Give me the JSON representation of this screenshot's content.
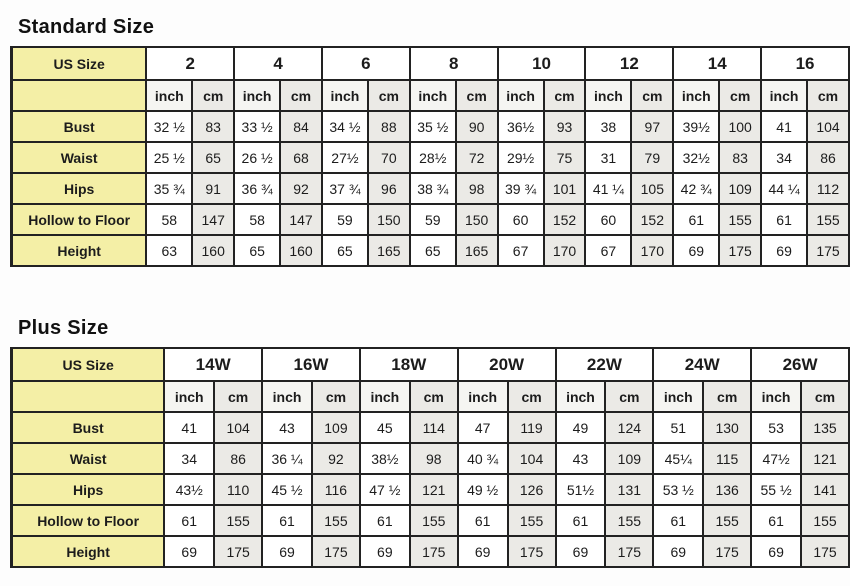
{
  "colors": {
    "label_yellow": "#f4efa6",
    "cm_column_gray": "#ebeae6",
    "inch_unit_bg": "#f5f5f2",
    "border_dark": "#222222",
    "page_bg": "#fdfdfd"
  },
  "standard": {
    "title": "Standard Size",
    "corner_label": "US Size",
    "unit_inch": "inch",
    "unit_cm": "cm",
    "sizes": [
      "2",
      "4",
      "6",
      "8",
      "10",
      "12",
      "14",
      "16"
    ],
    "rows": [
      {
        "label": "Bust",
        "values": [
          [
            "32 ½",
            "83"
          ],
          [
            "33 ½",
            "84"
          ],
          [
            "34 ½",
            "88"
          ],
          [
            "35 ½",
            "90"
          ],
          [
            "36½",
            "93"
          ],
          [
            "38",
            "97"
          ],
          [
            "39½",
            "100"
          ],
          [
            "41",
            "104"
          ]
        ]
      },
      {
        "label": "Waist",
        "values": [
          [
            "25 ½",
            "65"
          ],
          [
            "26 ½",
            "68"
          ],
          [
            "27½",
            "70"
          ],
          [
            "28½",
            "72"
          ],
          [
            "29½",
            "75"
          ],
          [
            "31",
            "79"
          ],
          [
            "32½",
            "83"
          ],
          [
            "34",
            "86"
          ]
        ]
      },
      {
        "label": "Hips",
        "values": [
          [
            "35 ¾",
            "91"
          ],
          [
            "36 ¾",
            "92"
          ],
          [
            "37 ¾",
            "96"
          ],
          [
            "38 ¾",
            "98"
          ],
          [
            "39 ¾",
            "101"
          ],
          [
            "41 ¼",
            "105"
          ],
          [
            "42 ¾",
            "109"
          ],
          [
            "44 ¼",
            "112"
          ]
        ]
      },
      {
        "label": "Hollow to Floor",
        "values": [
          [
            "58",
            "147"
          ],
          [
            "58",
            "147"
          ],
          [
            "59",
            "150"
          ],
          [
            "59",
            "150"
          ],
          [
            "60",
            "152"
          ],
          [
            "60",
            "152"
          ],
          [
            "61",
            "155"
          ],
          [
            "61",
            "155"
          ]
        ]
      },
      {
        "label": "Height",
        "values": [
          [
            "63",
            "160"
          ],
          [
            "65",
            "160"
          ],
          [
            "65",
            "165"
          ],
          [
            "65",
            "165"
          ],
          [
            "67",
            "170"
          ],
          [
            "67",
            "170"
          ],
          [
            "69",
            "175"
          ],
          [
            "69",
            "175"
          ]
        ]
      }
    ]
  },
  "plus": {
    "title": "Plus Size",
    "corner_label": "US Size",
    "unit_inch": "inch",
    "unit_cm": "cm",
    "sizes": [
      "14W",
      "16W",
      "18W",
      "20W",
      "22W",
      "24W",
      "26W"
    ],
    "rows": [
      {
        "label": "Bust",
        "values": [
          [
            "41",
            "104"
          ],
          [
            "43",
            "109"
          ],
          [
            "45",
            "114"
          ],
          [
            "47",
            "119"
          ],
          [
            "49",
            "124"
          ],
          [
            "51",
            "130"
          ],
          [
            "53",
            "135"
          ]
        ]
      },
      {
        "label": "Waist",
        "values": [
          [
            "34",
            "86"
          ],
          [
            "36 ¼",
            "92"
          ],
          [
            "38½",
            "98"
          ],
          [
            "40 ¾",
            "104"
          ],
          [
            "43",
            "109"
          ],
          [
            "45¼",
            "115"
          ],
          [
            "47½",
            "121"
          ]
        ]
      },
      {
        "label": "Hips",
        "values": [
          [
            "43½",
            "110"
          ],
          [
            "45 ½",
            "116"
          ],
          [
            "47 ½",
            "121"
          ],
          [
            "49 ½",
            "126"
          ],
          [
            "51½",
            "131"
          ],
          [
            "53 ½",
            "136"
          ],
          [
            "55 ½",
            "141"
          ]
        ]
      },
      {
        "label": "Hollow to Floor",
        "values": [
          [
            "61",
            "155"
          ],
          [
            "61",
            "155"
          ],
          [
            "61",
            "155"
          ],
          [
            "61",
            "155"
          ],
          [
            "61",
            "155"
          ],
          [
            "61",
            "155"
          ],
          [
            "61",
            "155"
          ]
        ]
      },
      {
        "label": "Height",
        "values": [
          [
            "69",
            "175"
          ],
          [
            "69",
            "175"
          ],
          [
            "69",
            "175"
          ],
          [
            "69",
            "175"
          ],
          [
            "69",
            "175"
          ],
          [
            "69",
            "175"
          ],
          [
            "69",
            "175"
          ]
        ]
      }
    ]
  }
}
